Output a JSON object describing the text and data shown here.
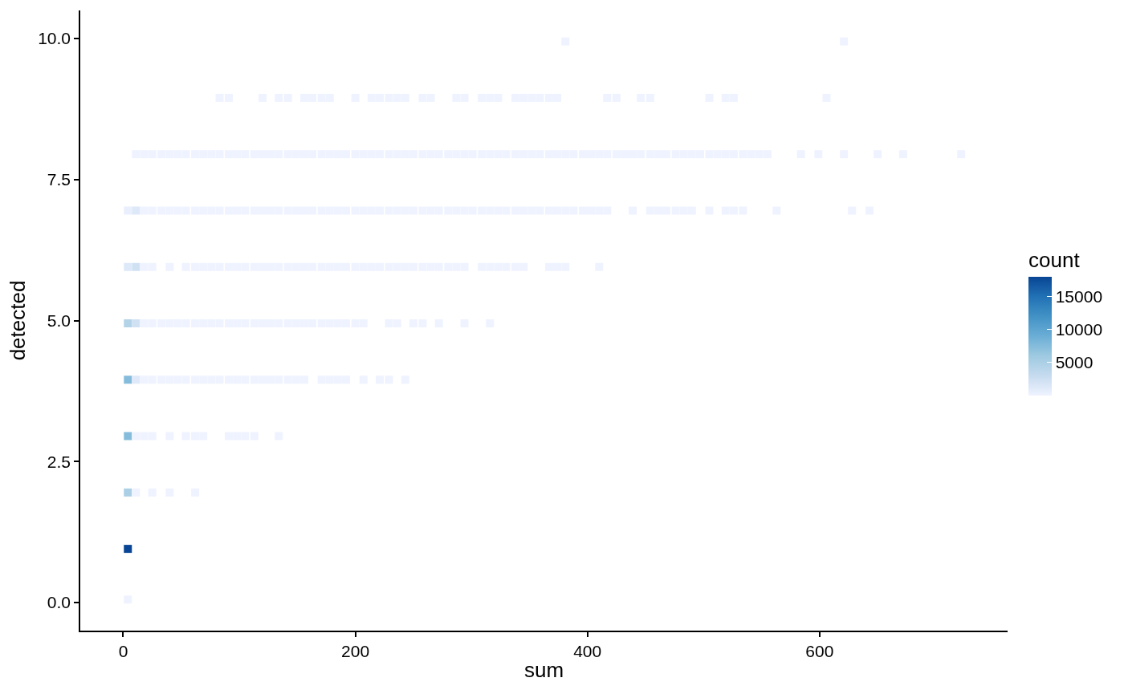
{
  "chart_data": {
    "type": "scatter",
    "xlabel": "sum",
    "ylabel": "detected",
    "clabel": "count",
    "marker": "square",
    "xlim": [
      -37,
      762
    ],
    "ylim": [
      -0.5,
      10.5
    ],
    "xticks": [
      0,
      200,
      400,
      600
    ],
    "yticks": [
      {
        "value": 0,
        "label": "0.0"
      },
      2.5,
      {
        "value": 5,
        "label": "5.0"
      },
      7.5,
      {
        "value": 10,
        "label": "10.0"
      }
    ],
    "clim": [
      1,
      18000
    ],
    "cticks": [
      5000,
      10000,
      15000
    ],
    "x": [
      4,
      4,
      4,
      11,
      25,
      40,
      62,
      4,
      11,
      18,
      25,
      40,
      54,
      62,
      69,
      91,
      98,
      105,
      113,
      134,
      4,
      11,
      18,
      25,
      33,
      40,
      47,
      54,
      62,
      69,
      76,
      83,
      91,
      98,
      105,
      113,
      120,
      127,
      134,
      142,
      149,
      156,
      171,
      178,
      185,
      192,
      207,
      221,
      229,
      243,
      4,
      11,
      18,
      25,
      33,
      40,
      47,
      54,
      62,
      69,
      76,
      83,
      91,
      98,
      105,
      113,
      120,
      127,
      134,
      142,
      149,
      156,
      163,
      171,
      178,
      185,
      192,
      200,
      207,
      229,
      236,
      250,
      258,
      272,
      294,
      316,
      4,
      11,
      18,
      25,
      40,
      54,
      62,
      69,
      76,
      83,
      91,
      98,
      105,
      113,
      120,
      127,
      134,
      142,
      149,
      156,
      163,
      171,
      178,
      185,
      192,
      200,
      207,
      214,
      221,
      229,
      236,
      243,
      250,
      258,
      265,
      272,
      280,
      287,
      294,
      309,
      316,
      323,
      330,
      338,
      345,
      367,
      374,
      381,
      410,
      4,
      11,
      18,
      25,
      33,
      40,
      47,
      54,
      62,
      69,
      76,
      83,
      91,
      98,
      105,
      113,
      120,
      127,
      134,
      142,
      149,
      156,
      163,
      171,
      178,
      185,
      192,
      200,
      207,
      214,
      221,
      229,
      236,
      243,
      250,
      258,
      265,
      272,
      280,
      287,
      294,
      301,
      309,
      316,
      323,
      330,
      338,
      345,
      352,
      359,
      367,
      374,
      381,
      388,
      396,
      403,
      410,
      417,
      439,
      454,
      461,
      468,
      476,
      483,
      490,
      505,
      519,
      526,
      534,
      563,
      628,
      643,
      11,
      18,
      25,
      33,
      40,
      47,
      54,
      62,
      69,
      76,
      83,
      91,
      98,
      105,
      113,
      120,
      127,
      134,
      142,
      149,
      156,
      163,
      171,
      178,
      185,
      192,
      200,
      207,
      214,
      221,
      229,
      236,
      243,
      250,
      258,
      265,
      272,
      280,
      287,
      294,
      301,
      309,
      316,
      323,
      330,
      338,
      345,
      352,
      359,
      367,
      374,
      381,
      388,
      396,
      403,
      410,
      417,
      425,
      432,
      439,
      446,
      454,
      461,
      468,
      476,
      483,
      490,
      497,
      505,
      512,
      519,
      526,
      534,
      541,
      548,
      555,
      584,
      599,
      621,
      650,
      672,
      722,
      83,
      91,
      120,
      134,
      142,
      156,
      163,
      171,
      178,
      200,
      214,
      221,
      229,
      236,
      243,
      258,
      265,
      287,
      294,
      309,
      316,
      323,
      338,
      345,
      352,
      359,
      367,
      374,
      417,
      425,
      446,
      454,
      505,
      519,
      526,
      606,
      381,
      621
    ],
    "values": [
      0.05,
      0.95,
      1.95,
      1.95,
      1.95,
      1.95,
      1.95,
      2.95,
      2.95,
      2.95,
      2.95,
      2.95,
      2.95,
      2.95,
      2.95,
      2.95,
      2.95,
      2.95,
      2.95,
      2.95,
      3.95,
      3.95,
      3.95,
      3.95,
      3.95,
      3.95,
      3.95,
      3.95,
      3.95,
      3.95,
      3.95,
      3.95,
      3.95,
      3.95,
      3.95,
      3.95,
      3.95,
      3.95,
      3.95,
      3.95,
      3.95,
      3.95,
      3.95,
      3.95,
      3.95,
      3.95,
      3.95,
      3.95,
      3.95,
      3.95,
      4.95,
      4.95,
      4.95,
      4.95,
      4.95,
      4.95,
      4.95,
      4.95,
      4.95,
      4.95,
      4.95,
      4.95,
      4.95,
      4.95,
      4.95,
      4.95,
      4.95,
      4.95,
      4.95,
      4.95,
      4.95,
      4.95,
      4.95,
      4.95,
      4.95,
      4.95,
      4.95,
      4.95,
      4.95,
      4.95,
      4.95,
      4.95,
      4.95,
      4.95,
      4.95,
      4.95,
      5.95,
      5.95,
      5.95,
      5.95,
      5.95,
      5.95,
      5.95,
      5.95,
      5.95,
      5.95,
      5.95,
      5.95,
      5.95,
      5.95,
      5.95,
      5.95,
      5.95,
      5.95,
      5.95,
      5.95,
      5.95,
      5.95,
      5.95,
      5.95,
      5.95,
      5.95,
      5.95,
      5.95,
      5.95,
      5.95,
      5.95,
      5.95,
      5.95,
      5.95,
      5.95,
      5.95,
      5.95,
      5.95,
      5.95,
      5.95,
      5.95,
      5.95,
      5.95,
      5.95,
      5.95,
      5.95,
      5.95,
      5.95,
      5.95,
      6.95,
      6.95,
      6.95,
      6.95,
      6.95,
      6.95,
      6.95,
      6.95,
      6.95,
      6.95,
      6.95,
      6.95,
      6.95,
      6.95,
      6.95,
      6.95,
      6.95,
      6.95,
      6.95,
      6.95,
      6.95,
      6.95,
      6.95,
      6.95,
      6.95,
      6.95,
      6.95,
      6.95,
      6.95,
      6.95,
      6.95,
      6.95,
      6.95,
      6.95,
      6.95,
      6.95,
      6.95,
      6.95,
      6.95,
      6.95,
      6.95,
      6.95,
      6.95,
      6.95,
      6.95,
      6.95,
      6.95,
      6.95,
      6.95,
      6.95,
      6.95,
      6.95,
      6.95,
      6.95,
      6.95,
      6.95,
      6.95,
      6.95,
      6.95,
      6.95,
      6.95,
      6.95,
      6.95,
      6.95,
      6.95,
      6.95,
      6.95,
      6.95,
      6.95,
      6.95,
      6.95,
      6.95,
      7.95,
      7.95,
      7.95,
      7.95,
      7.95,
      7.95,
      7.95,
      7.95,
      7.95,
      7.95,
      7.95,
      7.95,
      7.95,
      7.95,
      7.95,
      7.95,
      7.95,
      7.95,
      7.95,
      7.95,
      7.95,
      7.95,
      7.95,
      7.95,
      7.95,
      7.95,
      7.95,
      7.95,
      7.95,
      7.95,
      7.95,
      7.95,
      7.95,
      7.95,
      7.95,
      7.95,
      7.95,
      7.95,
      7.95,
      7.95,
      7.95,
      7.95,
      7.95,
      7.95,
      7.95,
      7.95,
      7.95,
      7.95,
      7.95,
      7.95,
      7.95,
      7.95,
      7.95,
      7.95,
      7.95,
      7.95,
      7.95,
      7.95,
      7.95,
      7.95,
      7.95,
      7.95,
      7.95,
      7.95,
      7.95,
      7.95,
      7.95,
      7.95,
      7.95,
      7.95,
      7.95,
      7.95,
      7.95,
      7.95,
      7.95,
      7.95,
      7.95,
      7.95,
      7.95,
      7.95,
      7.95,
      7.95,
      8.95,
      8.95,
      8.95,
      8.95,
      8.95,
      8.95,
      8.95,
      8.95,
      8.95,
      8.95,
      8.95,
      8.95,
      8.95,
      8.95,
      8.95,
      8.95,
      8.95,
      8.95,
      8.95,
      8.95,
      8.95,
      8.95,
      8.95,
      8.95,
      8.95,
      8.95,
      8.95,
      8.95,
      8.95,
      8.95,
      8.95,
      8.95,
      8.95,
      8.95,
      8.95,
      8.95,
      9.95,
      9.95
    ],
    "cvalues": [
      1,
      18000,
      5000,
      1,
      1,
      1,
      1,
      7500,
      1,
      1,
      1,
      1,
      1,
      1,
      1,
      1,
      1,
      1,
      1,
      1,
      7500,
      1200,
      1,
      1,
      1,
      1,
      1,
      1,
      1,
      1,
      1,
      1,
      1,
      1,
      1,
      1,
      1,
      1,
      1,
      1,
      1,
      1,
      1,
      1,
      1,
      1,
      1,
      1,
      1,
      1,
      4400,
      2300,
      1,
      1,
      1,
      1,
      1,
      1,
      1,
      1,
      1,
      1,
      1,
      1,
      1,
      1,
      1,
      1,
      1,
      1,
      1,
      1,
      1,
      1,
      1,
      1,
      1,
      1,
      1,
      1,
      1,
      1,
      1,
      1,
      1,
      1,
      1300,
      2300,
      1,
      1,
      1,
      1,
      1,
      1,
      1,
      1,
      1,
      1,
      1,
      1,
      1,
      1,
      1,
      1,
      1,
      1,
      1,
      1,
      1,
      1,
      1,
      1,
      1,
      1,
      1,
      1,
      1,
      1,
      1,
      1,
      1,
      1,
      1,
      1,
      1,
      1,
      1,
      1,
      1,
      1,
      1,
      1,
      1,
      1,
      1,
      450,
      1300,
      1,
      1,
      1,
      1,
      1,
      1,
      1,
      1,
      1,
      1,
      1,
      1,
      1,
      1,
      1,
      1,
      1,
      1,
      1,
      1,
      1,
      1,
      1,
      1,
      1,
      1,
      1,
      1,
      1,
      1,
      1,
      1,
      1,
      1,
      1,
      1,
      1,
      1,
      1,
      1,
      1,
      1,
      1,
      1,
      1,
      1,
      1,
      1,
      1,
      1,
      1,
      1,
      1,
      1,
      1,
      1,
      1,
      1,
      1,
      1,
      1,
      1,
      1,
      1,
      1,
      1,
      1,
      1,
      1,
      1,
      1,
      1,
      1,
      1,
      1,
      1,
      1,
      1,
      1,
      1,
      1,
      1,
      1,
      1,
      1,
      1,
      1,
      1,
      1,
      1,
      1,
      1,
      1,
      1,
      1,
      1,
      1,
      1,
      1,
      1,
      1,
      1,
      1,
      1,
      1,
      1,
      1,
      1,
      1,
      1,
      1,
      1,
      1,
      1,
      1,
      1,
      1,
      1,
      1,
      1,
      1,
      1,
      1,
      1,
      1,
      1,
      1,
      1,
      1,
      1,
      1,
      1,
      1,
      1,
      1,
      1,
      1,
      1,
      1,
      1,
      1,
      1,
      1,
      1,
      1,
      1,
      1,
      1,
      1,
      1,
      1,
      1,
      1,
      1,
      1,
      1,
      1,
      1,
      1,
      1,
      1,
      1,
      1,
      1,
      1,
      1,
      1,
      1,
      1,
      1,
      1,
      1,
      1,
      1,
      1,
      1,
      1,
      1,
      1,
      1,
      1,
      1,
      1,
      1,
      1,
      1,
      1,
      1,
      1,
      1
    ]
  }
}
